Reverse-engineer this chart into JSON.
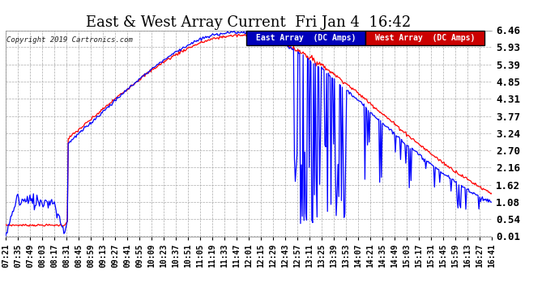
{
  "title": "East & West Array Current  Fri Jan 4  16:42",
  "copyright": "Copyright 2019 Cartronics.com",
  "legend_east": "East Array  (DC Amps)",
  "legend_west": "West Array  (DC Amps)",
  "east_color": "#0000ff",
  "west_color": "#ff0000",
  "legend_east_bg": "#0000bb",
  "legend_west_bg": "#cc0000",
  "background_color": "#ffffff",
  "grid_color": "#aaaaaa",
  "yticks": [
    0.01,
    0.54,
    1.08,
    1.62,
    2.16,
    2.7,
    3.24,
    3.77,
    4.31,
    4.85,
    5.39,
    5.93,
    6.46
  ],
  "ymin": 0.0,
  "ymax": 6.46,
  "xlabel_fontsize": 7,
  "ylabel_fontsize": 9,
  "title_fontsize": 13,
  "xtick_labels": [
    "07:21",
    "07:35",
    "07:49",
    "08:03",
    "08:17",
    "08:31",
    "08:45",
    "08:59",
    "09:13",
    "09:27",
    "09:41",
    "09:55",
    "10:09",
    "10:23",
    "10:37",
    "10:51",
    "11:05",
    "11:19",
    "11:33",
    "11:47",
    "12:01",
    "12:15",
    "12:29",
    "12:43",
    "12:57",
    "13:11",
    "13:25",
    "13:39",
    "13:53",
    "14:07",
    "14:21",
    "14:35",
    "14:49",
    "15:03",
    "15:17",
    "15:31",
    "15:45",
    "15:59",
    "16:13",
    "16:27",
    "16:41"
  ]
}
